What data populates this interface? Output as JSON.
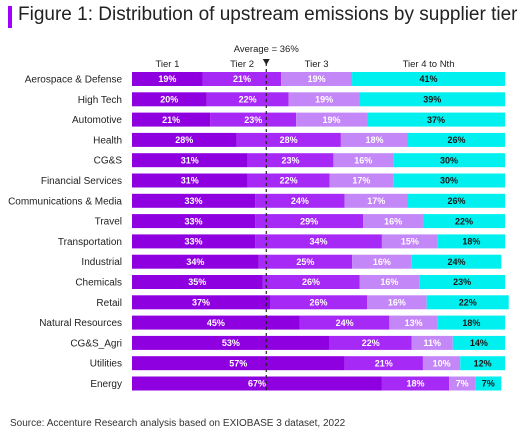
{
  "title": "Figure 1: Distribution of upstream emissions by supplier tier",
  "source": "Source: Accenture Research analysis based on EXIOBASE 3 dataset, 2022",
  "chart_data": {
    "type": "bar",
    "orientation": "horizontal",
    "stacked": true,
    "annotation": {
      "label": "Average = 36%",
      "value": 36
    },
    "xlim": [
      0,
      100
    ],
    "categories": [
      "Aerospace & Defense",
      "High Tech",
      "Automotive",
      "Health",
      "CG&S",
      "Financial Services",
      "Communications & Media",
      "Travel",
      "Transportation",
      "Industrial",
      "Chemicals",
      "Retail",
      "Natural Resources",
      "CG&S_Agri",
      "Utilities",
      "Energy"
    ],
    "series": [
      {
        "name": "Tier 1",
        "color": "#8f00e0",
        "values": [
          19,
          20,
          21,
          28,
          31,
          31,
          33,
          33,
          33,
          34,
          35,
          37,
          45,
          53,
          57,
          67
        ]
      },
      {
        "name": "Tier 2",
        "color": "#a629f5",
        "values": [
          21,
          22,
          23,
          28,
          23,
          22,
          24,
          29,
          34,
          25,
          26,
          26,
          24,
          22,
          21,
          18
        ]
      },
      {
        "name": "Tier 3",
        "color": "#c487f7",
        "values": [
          19,
          19,
          19,
          18,
          16,
          17,
          17,
          16,
          15,
          16,
          16,
          16,
          13,
          11,
          10,
          7
        ]
      },
      {
        "name": "Tier 4 to Nth",
        "color": "#00f0f0",
        "values": [
          41,
          39,
          37,
          26,
          30,
          30,
          26,
          22,
          18,
          24,
          23,
          22,
          18,
          14,
          12,
          7
        ]
      }
    ],
    "grid": false,
    "legend": "top"
  }
}
